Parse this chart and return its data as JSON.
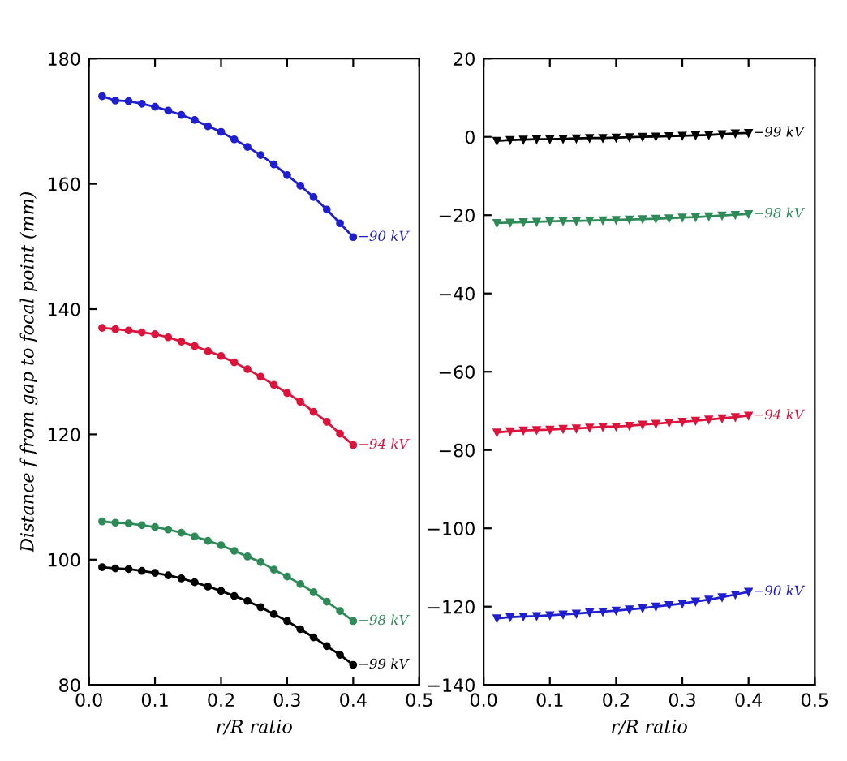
{
  "chart_data": [
    {
      "type": "line",
      "xlabel": "r/R ratio",
      "ylabel": "Distance f from gap to focal point (mm)",
      "marker": "circle",
      "line_style": "solid",
      "grid": false,
      "legend": false,
      "x": [
        0.02,
        0.04,
        0.06,
        0.08,
        0.1,
        0.12,
        0.14,
        0.16,
        0.18,
        0.2,
        0.22,
        0.24,
        0.26,
        0.28,
        0.3,
        0.32,
        0.34,
        0.36,
        0.38,
        0.4
      ],
      "xlim": [
        0,
        0.5
      ],
      "xticks": [
        {
          "value": 0,
          "label": "0.0"
        },
        0.1,
        0.2,
        0.3,
        0.4,
        0.5
      ],
      "ylim": [
        80,
        180
      ],
      "yticks": [
        80,
        100,
        120,
        140,
        160,
        180
      ],
      "series": [
        {
          "name": "−90 kV",
          "color": "#1f1fd0",
          "values": [
            174.0,
            173.3,
            173.2,
            172.8,
            172.3,
            171.7,
            171.0,
            170.2,
            169.2,
            168.3,
            167.1,
            165.9,
            164.6,
            163.1,
            161.4,
            159.7,
            157.9,
            155.9,
            153.7,
            151.5
          ]
        },
        {
          "name": "−94 kV",
          "color": "#dc143c",
          "values": [
            137.0,
            136.8,
            136.6,
            136.3,
            136.0,
            135.5,
            134.8,
            134.1,
            133.3,
            132.5,
            131.5,
            130.4,
            129.2,
            127.9,
            126.6,
            125.2,
            123.6,
            122.0,
            120.1,
            118.3
          ]
        },
        {
          "name": "−98 kV",
          "color": "#2e8b57",
          "values": [
            106.1,
            105.9,
            105.8,
            105.5,
            105.2,
            104.8,
            104.3,
            103.7,
            103.0,
            102.3,
            101.4,
            100.5,
            99.6,
            98.4,
            97.3,
            96.1,
            94.8,
            93.3,
            91.8,
            90.2
          ]
        },
        {
          "name": "−99 kV",
          "color": "#000000",
          "values": [
            98.8,
            98.6,
            98.5,
            98.2,
            97.9,
            97.5,
            97.0,
            96.4,
            95.7,
            95.0,
            94.2,
            93.4,
            92.4,
            91.3,
            90.2,
            88.9,
            87.6,
            86.2,
            84.8,
            83.2
          ]
        }
      ]
    },
    {
      "type": "line",
      "xlabel": "r/R ratio",
      "marker": "triangle",
      "line_style": "solid",
      "grid": false,
      "legend": false,
      "x": [
        0.02,
        0.04,
        0.06,
        0.08,
        0.1,
        0.12,
        0.14,
        0.16,
        0.18,
        0.2,
        0.22,
        0.24,
        0.26,
        0.28,
        0.3,
        0.32,
        0.34,
        0.36,
        0.38,
        0.4
      ],
      "xlim": [
        0,
        0.5
      ],
      "xticks": [
        {
          "value": 0,
          "label": "0.0"
        },
        0.1,
        0.2,
        0.3,
        0.4,
        0.5
      ],
      "ylim": [
        -140,
        20
      ],
      "yticks": [
        -140,
        -120,
        -100,
        -80,
        -60,
        -40,
        -20,
        0,
        20
      ],
      "series": [
        {
          "name": "−99 kV",
          "color": "#000000",
          "values": [
            -1.0,
            -0.8,
            -0.7,
            -0.6,
            -0.6,
            -0.5,
            -0.4,
            -0.3,
            -0.3,
            -0.2,
            -0.1,
            0.0,
            0.1,
            0.2,
            0.3,
            0.4,
            0.5,
            0.7,
            0.9,
            1.0
          ]
        },
        {
          "name": "−98 kV",
          "color": "#2e8b57",
          "values": [
            -22.0,
            -21.9,
            -21.8,
            -21.7,
            -21.6,
            -21.5,
            -21.5,
            -21.4,
            -21.3,
            -21.2,
            -21.1,
            -21.0,
            -20.9,
            -20.8,
            -20.6,
            -20.5,
            -20.3,
            -20.1,
            -19.9,
            -19.7
          ]
        },
        {
          "name": "−94 kV",
          "color": "#dc143c",
          "values": [
            -75.5,
            -75.2,
            -75.0,
            -74.9,
            -74.8,
            -74.6,
            -74.5,
            -74.3,
            -74.1,
            -74.0,
            -73.8,
            -73.5,
            -73.3,
            -73.0,
            -72.8,
            -72.5,
            -72.2,
            -71.9,
            -71.6,
            -71.2
          ]
        },
        {
          "name": "−90 kV",
          "color": "#1f1fd0",
          "values": [
            -123.0,
            -122.7,
            -122.5,
            -122.4,
            -122.2,
            -122.0,
            -121.8,
            -121.5,
            -121.3,
            -121.0,
            -120.7,
            -120.4,
            -120.0,
            -119.6,
            -119.2,
            -118.7,
            -118.2,
            -117.6,
            -116.9,
            -116.2
          ]
        }
      ]
    }
  ]
}
